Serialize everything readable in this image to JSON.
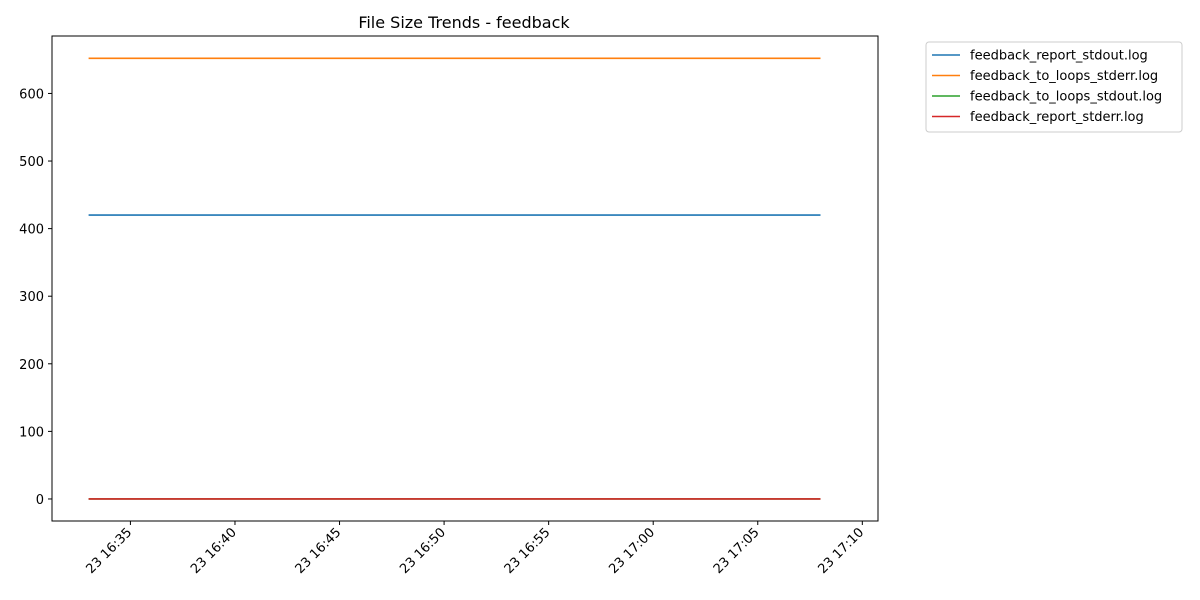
{
  "chart_data": {
    "type": "line",
    "title": "File Size Trends - feedback",
    "xlabel": "",
    "ylabel": "",
    "x": [
      "16:33",
      "17:08"
    ],
    "x_ticks": [
      "23 16:35",
      "23 16:40",
      "23 16:45",
      "23 16:50",
      "23 16:55",
      "23 17:00",
      "23 17:05",
      "23 17:10"
    ],
    "y_ticks": [
      0,
      100,
      200,
      300,
      400,
      500,
      600
    ],
    "xlim": [
      "16:31:15",
      "17:10:45"
    ],
    "ylim": [
      -32.6,
      685
    ],
    "grid": false,
    "legend_position": "outside-top-right",
    "series": [
      {
        "name": "feedback_report_stdout.log",
        "color": "#1f77b4",
        "values": [
          420,
          420
        ]
      },
      {
        "name": "feedback_to_loops_stderr.log",
        "color": "#ff7f0e",
        "values": [
          652,
          652
        ]
      },
      {
        "name": "feedback_to_loops_stdout.log",
        "color": "#2ca02c",
        "values": [
          0,
          0
        ]
      },
      {
        "name": "feedback_report_stderr.log",
        "color": "#d62728",
        "values": [
          0,
          0
        ]
      }
    ]
  }
}
